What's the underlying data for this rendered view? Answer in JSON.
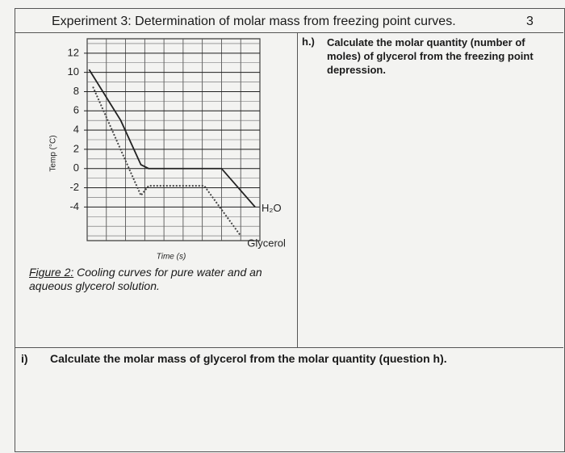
{
  "header": {
    "title": "Experiment 3: Determination of molar mass from freezing point curves.",
    "points": "3"
  },
  "chart_data": {
    "type": "line",
    "x_label": "Time (s)",
    "y_label": "Temp (°C)",
    "xlim": [
      0,
      9
    ],
    "ylim": [
      -7.5,
      13.5
    ],
    "yticks": [
      12,
      10,
      8,
      6,
      4,
      2,
      0,
      -2,
      -4
    ],
    "grid": true,
    "series": [
      {
        "name": "H₂O",
        "color": "#222",
        "style": "solid",
        "x": [
          0.1,
          1.75,
          2.8,
          3.2,
          7,
          8.75
        ],
        "values": [
          10.3,
          5,
          0.4,
          0,
          0,
          -4
        ]
      },
      {
        "name": "Glycerol",
        "color": "#444",
        "style": "dotted",
        "x": [
          0.3,
          2.8,
          3.2,
          6.1,
          8
        ],
        "values": [
          8.5,
          -2.8,
          -1.8,
          -1.8,
          -7
        ]
      }
    ]
  },
  "figure": {
    "label": "Figure 2:",
    "caption": "Cooling curves for pure water and an aqueous glycerol solution."
  },
  "question_h": {
    "number": "h.)",
    "text": "Calculate the molar quantity (number of moles) of glycerol from the freezing point depression."
  },
  "question_i": {
    "number": "i)",
    "text": "Calculate the molar mass of glycerol from the molar quantity (question h)."
  }
}
